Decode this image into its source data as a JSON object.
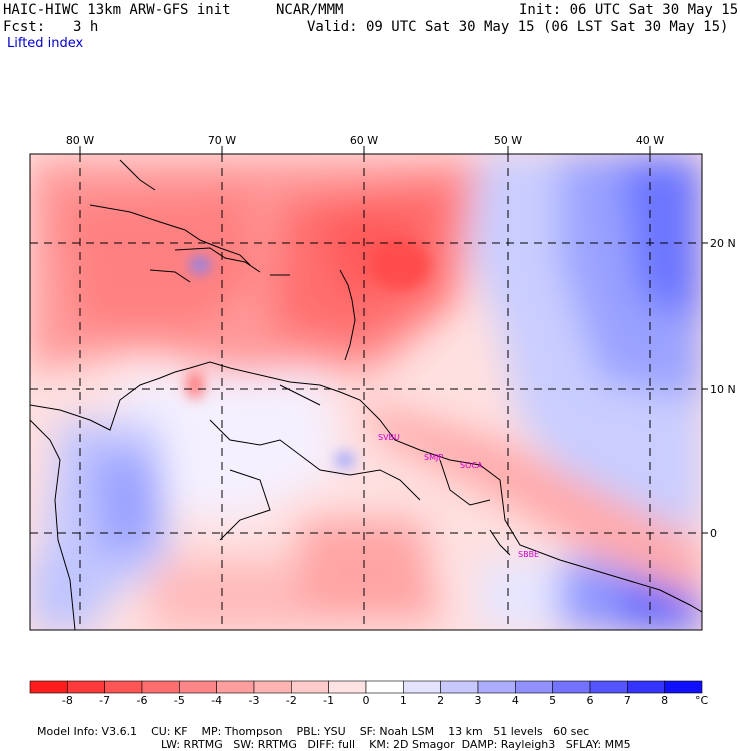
{
  "header": {
    "model": "HAIC-HIWC 13km ARW-GFS init",
    "org": "NCAR/MMM",
    "init": "Init: 06 UTC Sat 30 May 15",
    "fcst_label": "Fcst:",
    "fcst_value": "3 h",
    "valid": "Valid: 09 UTC Sat 30 May 15 (06 LST Sat 30 May 15)",
    "field": "Lifted index"
  },
  "axes": {
    "lon_labels": [
      "80 W",
      "70 W",
      "60 W",
      "50 W",
      "40 W"
    ],
    "lat_labels": [
      "20 N",
      "10 N",
      "0"
    ]
  },
  "stations": [
    "SVBU",
    "SMJP",
    "SOCA",
    "SBBE"
  ],
  "colorbar": {
    "ticks": [
      "-8",
      "-7",
      "-6",
      "-5",
      "-4",
      "-3",
      "-2",
      "-1",
      "0",
      "1",
      "2",
      "3",
      "4",
      "5",
      "6",
      "7",
      "8"
    ],
    "unit": "°C",
    "colors": [
      "#ff1c1c",
      "#ff3a3a",
      "#ff5555",
      "#ff6e6e",
      "#ff8686",
      "#ff9e9e",
      "#ffb4b4",
      "#ffcaca",
      "#ffe3e3",
      "#ffffff",
      "#e3e3ff",
      "#c8c8ff",
      "#adadff",
      "#9090ff",
      "#7373ff",
      "#5555ff",
      "#3535ff",
      "#1010ff"
    ]
  },
  "footer": {
    "line1": [
      "Model Info: V3.6.1",
      "CU: KF",
      "MP: Thompson",
      "PBL: YSU",
      "SF: Noah LSM",
      "13 km",
      "51 levels",
      "60 sec"
    ],
    "line2": [
      "LW: RRTMG",
      "SW: RRTMG",
      "DIFF: full",
      "KM: 2D Smagor",
      "DAMP: Rayleigh3",
      "SFLAY: MM5"
    ]
  }
}
